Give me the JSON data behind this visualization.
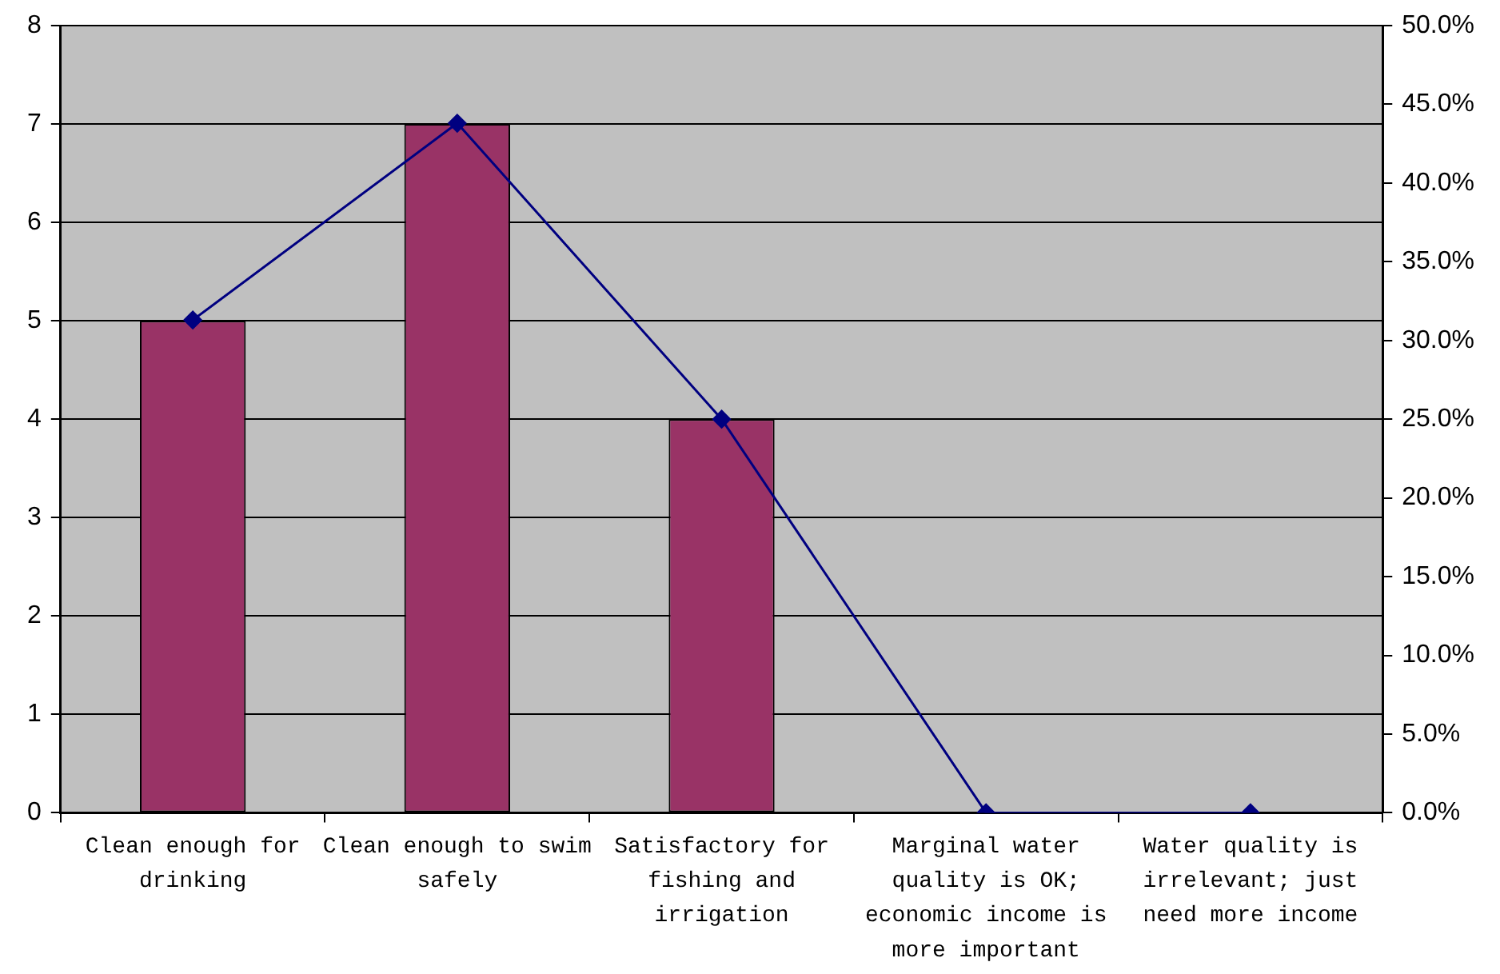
{
  "chart_data": {
    "type": "bar",
    "categories": [
      "Clean enough for drinking",
      "Clean enough to swim safely",
      "Satisfactory for fishing and irrigation",
      "Marginal water quality is OK; economic income is more important",
      "Water quality is irrelevant; just need more income"
    ],
    "series": [
      {
        "color": "#993366",
        "values": [
          5,
          7,
          4,
          0,
          0
        ]
      },
      {
        "type": "line",
        "axis": "y2",
        "color": "#000080",
        "values": [
          31.3,
          43.8,
          25,
          0,
          0
        ]
      }
    ],
    "ylim": [
      0,
      8
    ],
    "yticks": [
      0,
      1,
      2,
      3,
      4,
      5,
      6,
      7,
      8
    ],
    "y2lim": [
      0,
      50
    ],
    "y2ticks": [
      {
        "value": 0,
        "label": "0.0%"
      },
      {
        "value": 5,
        "label": "5.0%"
      },
      {
        "value": 10,
        "label": "10.0%"
      },
      {
        "value": 15,
        "label": "15.0%"
      },
      {
        "value": 20,
        "label": "20.0%"
      },
      {
        "value": 25,
        "label": "25.0%"
      },
      {
        "value": 30,
        "label": "30.0%"
      },
      {
        "value": 35,
        "label": "35.0%"
      },
      {
        "value": 40,
        "label": "40.0%"
      },
      {
        "value": 45,
        "label": "45.0%"
      },
      {
        "value": 50,
        "label": "50.0%"
      }
    ],
    "grid": "y",
    "marker": "diamond",
    "line_style": "solid"
  }
}
